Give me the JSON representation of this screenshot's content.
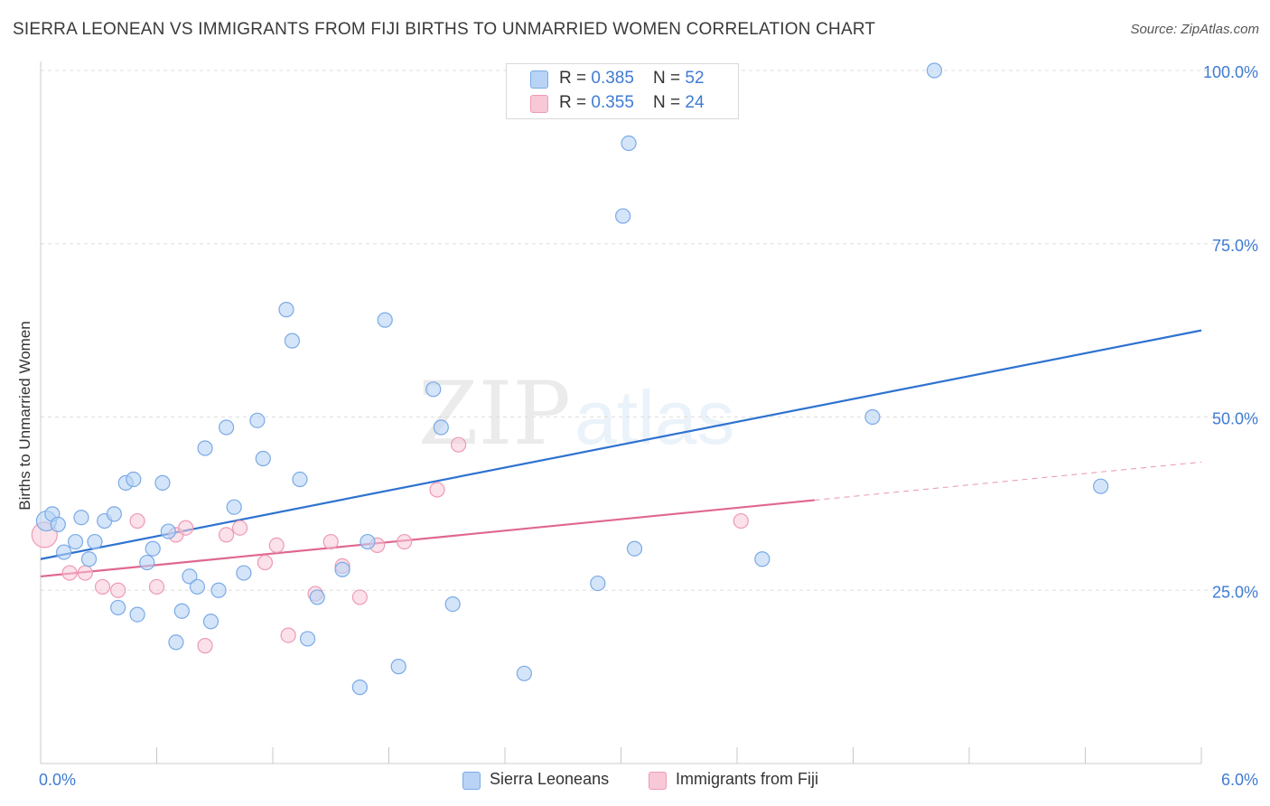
{
  "title": "SIERRA LEONEAN VS IMMIGRANTS FROM FIJI BIRTHS TO UNMARRIED WOMEN CORRELATION CHART",
  "source": "Source: ZipAtlas.com",
  "watermark": {
    "bold": "ZIP",
    "light": "atlas"
  },
  "legend_top": [
    {
      "r_label": "R = ",
      "r_value": "0.385",
      "n_label": "N = ",
      "n_value": "52"
    },
    {
      "r_label": "R = ",
      "r_value": "0.355",
      "n_label": "N = ",
      "n_value": "24"
    }
  ],
  "colors": {
    "blue_fill": "#b8d3f5",
    "blue_stroke": "#7aaae6",
    "blue_line": "#2f72d0",
    "pink_fill": "#f8c8d7",
    "pink_stroke": "#ee9ab4",
    "pink_line": "#e06790",
    "tick_text": "#3f7bd3",
    "grid": "#dddddd"
  },
  "chart_data": {
    "type": "scatter",
    "title": "SIERRA LEONEAN VS IMMIGRANTS FROM FIJI BIRTHS TO UNMARRIED WOMEN CORRELATION CHART",
    "xlabel": "",
    "ylabel": "Births to Unmarried Women",
    "xlim": [
      0,
      6
    ],
    "ylim": [
      0,
      100
    ],
    "x_tick_labels": [
      "0.0%",
      "6.0%"
    ],
    "y_ticks": [
      25,
      50,
      75,
      100
    ],
    "y_tick_labels": [
      "25.0%",
      "50.0%",
      "75.0%",
      "100.0%"
    ],
    "grid": true,
    "legend_position": "bottom",
    "series": [
      {
        "name": "Sierra Leoneans",
        "points": [
          [
            0.03,
            35.0
          ],
          [
            0.06,
            36.0
          ],
          [
            0.12,
            30.5
          ],
          [
            0.18,
            32.0
          ],
          [
            0.21,
            35.5
          ],
          [
            0.25,
            29.5
          ],
          [
            0.28,
            32.0
          ],
          [
            0.33,
            35.0
          ],
          [
            0.38,
            36.0
          ],
          [
            0.44,
            40.5
          ],
          [
            0.48,
            41.0
          ],
          [
            0.5,
            21.5
          ],
          [
            0.55,
            29.0
          ],
          [
            0.58,
            31.0
          ],
          [
            0.63,
            40.5
          ],
          [
            0.66,
            33.5
          ],
          [
            0.7,
            17.5
          ],
          [
            0.73,
            22.0
          ],
          [
            0.77,
            27.0
          ],
          [
            0.81,
            25.5
          ],
          [
            0.85,
            45.5
          ],
          [
            0.88,
            20.5
          ],
          [
            0.92,
            25.0
          ],
          [
            0.96,
            48.5
          ],
          [
            1.0,
            37.0
          ],
          [
            1.05,
            27.5
          ],
          [
            1.12,
            49.5
          ],
          [
            1.15,
            44.0
          ],
          [
            1.27,
            65.5
          ],
          [
            1.3,
            61.0
          ],
          [
            1.34,
            41.0
          ],
          [
            1.38,
            18.0
          ],
          [
            1.43,
            24.0
          ],
          [
            1.56,
            28.0
          ],
          [
            1.65,
            11.0
          ],
          [
            1.69,
            32.0
          ],
          [
            1.78,
            64.0
          ],
          [
            1.85,
            14.0
          ],
          [
            2.03,
            54.0
          ],
          [
            2.07,
            48.5
          ],
          [
            2.13,
            23.0
          ],
          [
            2.5,
            13.0
          ],
          [
            2.88,
            26.0
          ],
          [
            3.01,
            79.0
          ],
          [
            3.04,
            89.5
          ],
          [
            3.07,
            31.0
          ],
          [
            3.73,
            29.5
          ],
          [
            4.3,
            50.0
          ],
          [
            4.62,
            100.0
          ],
          [
            5.48,
            40.0
          ],
          [
            0.09,
            34.5
          ],
          [
            0.4,
            22.5
          ]
        ],
        "trend": {
          "x": [
            0.0,
            6.0
          ],
          "y": [
            29.5,
            62.5
          ]
        }
      },
      {
        "name": "Immigrants from Fiji",
        "points": [
          [
            0.02,
            33.0
          ],
          [
            0.15,
            27.5
          ],
          [
            0.23,
            27.5
          ],
          [
            0.32,
            25.5
          ],
          [
            0.4,
            25.0
          ],
          [
            0.5,
            35.0
          ],
          [
            0.6,
            25.5
          ],
          [
            0.7,
            33.0
          ],
          [
            0.75,
            34.0
          ],
          [
            0.85,
            17.0
          ],
          [
            0.96,
            33.0
          ],
          [
            1.03,
            34.0
          ],
          [
            1.16,
            29.0
          ],
          [
            1.22,
            31.5
          ],
          [
            1.28,
            18.5
          ],
          [
            1.42,
            24.5
          ],
          [
            1.5,
            32.0
          ],
          [
            1.56,
            28.5
          ],
          [
            1.65,
            24.0
          ],
          [
            1.74,
            31.5
          ],
          [
            1.88,
            32.0
          ],
          [
            2.05,
            39.5
          ],
          [
            2.16,
            46.0
          ],
          [
            3.62,
            35.0
          ]
        ],
        "trend": {
          "x": [
            0.0,
            4.0
          ],
          "y": [
            27.0,
            38.0
          ]
        },
        "trend_extension": {
          "x": [
            4.0,
            6.0
          ],
          "y": [
            38.0,
            43.5
          ]
        }
      }
    ]
  }
}
